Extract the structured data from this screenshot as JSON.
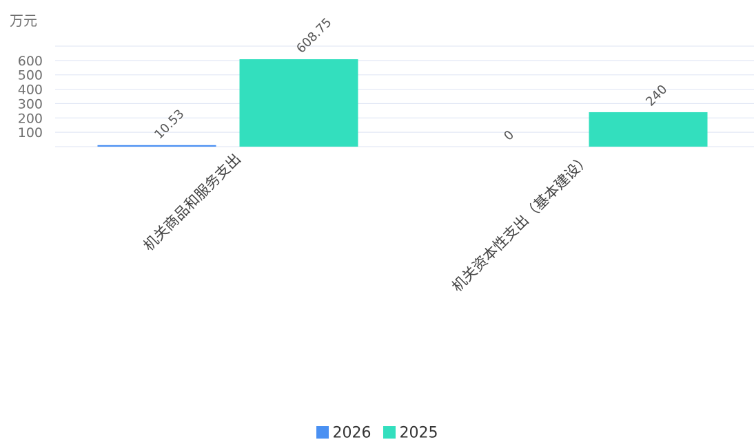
{
  "colors": {
    "series_2026": "#4a90f2",
    "series_2025": "#33dfbe",
    "grid": "#dde3f3",
    "axis_text": "#6e6e6e",
    "label_text": "#555555"
  },
  "chart_data": {
    "type": "bar",
    "unit": "万元",
    "categories": [
      "机关商品和服务支出",
      "机关资本性支出（基本建设）"
    ],
    "series": [
      {
        "name": "2026",
        "values": [
          10.53,
          0
        ]
      },
      {
        "name": "2025",
        "values": [
          608.75,
          240
        ]
      }
    ],
    "data_labels": [
      [
        "10.53",
        "0"
      ],
      [
        "608.75",
        "240"
      ]
    ],
    "yticks": [
      100,
      200,
      300,
      400,
      500,
      600
    ],
    "ylim": [
      0,
      700
    ],
    "grid": true,
    "legend": "bottom-center"
  }
}
